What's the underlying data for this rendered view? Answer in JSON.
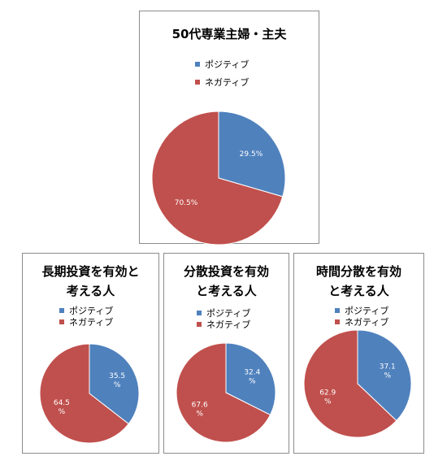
{
  "chart_data": [
    {
      "type": "pie",
      "title": "50代専業主婦・主夫",
      "categories": [
        "ポジティブ",
        "ネガティブ"
      ],
      "values": [
        29.5,
        70.5
      ],
      "labels": [
        [
          "29.5%"
        ],
        [
          "70.5%"
        ]
      ],
      "colors": [
        "#4f81bd",
        "#c0504d"
      ],
      "legend": "top"
    },
    {
      "type": "pie",
      "title": "長期投資を有効と考える人",
      "title_lines": [
        "長期投資を有効と",
        "考える人"
      ],
      "categories": [
        "ポジティブ",
        "ネガティブ"
      ],
      "values": [
        35.5,
        64.5
      ],
      "labels": [
        [
          "35.5",
          "%"
        ],
        [
          "64.5",
          "%"
        ]
      ],
      "colors": [
        "#4f81bd",
        "#c0504d"
      ],
      "legend": "top"
    },
    {
      "type": "pie",
      "title": "分散投資を有効と考える人",
      "title_lines": [
        "分散投資を有効",
        "と考える人"
      ],
      "categories": [
        "ポジティブ",
        "ネガティブ"
      ],
      "values": [
        32.4,
        67.6
      ],
      "labels": [
        [
          "32.4",
          "%"
        ],
        [
          "67.6",
          "%"
        ]
      ],
      "colors": [
        "#4f81bd",
        "#c0504d"
      ],
      "legend": "top"
    },
    {
      "type": "pie",
      "title": "時間分散を有効と考える人",
      "title_lines": [
        "時間分散を有効",
        "と考える人"
      ],
      "categories": [
        "ポジティブ",
        "ネガティブ"
      ],
      "values": [
        37.1,
        62.9
      ],
      "labels": [
        [
          "37.1",
          "%"
        ],
        [
          "62.9",
          "%"
        ]
      ],
      "colors": [
        "#4f81bd",
        "#c0504d"
      ],
      "legend": "top"
    }
  ]
}
